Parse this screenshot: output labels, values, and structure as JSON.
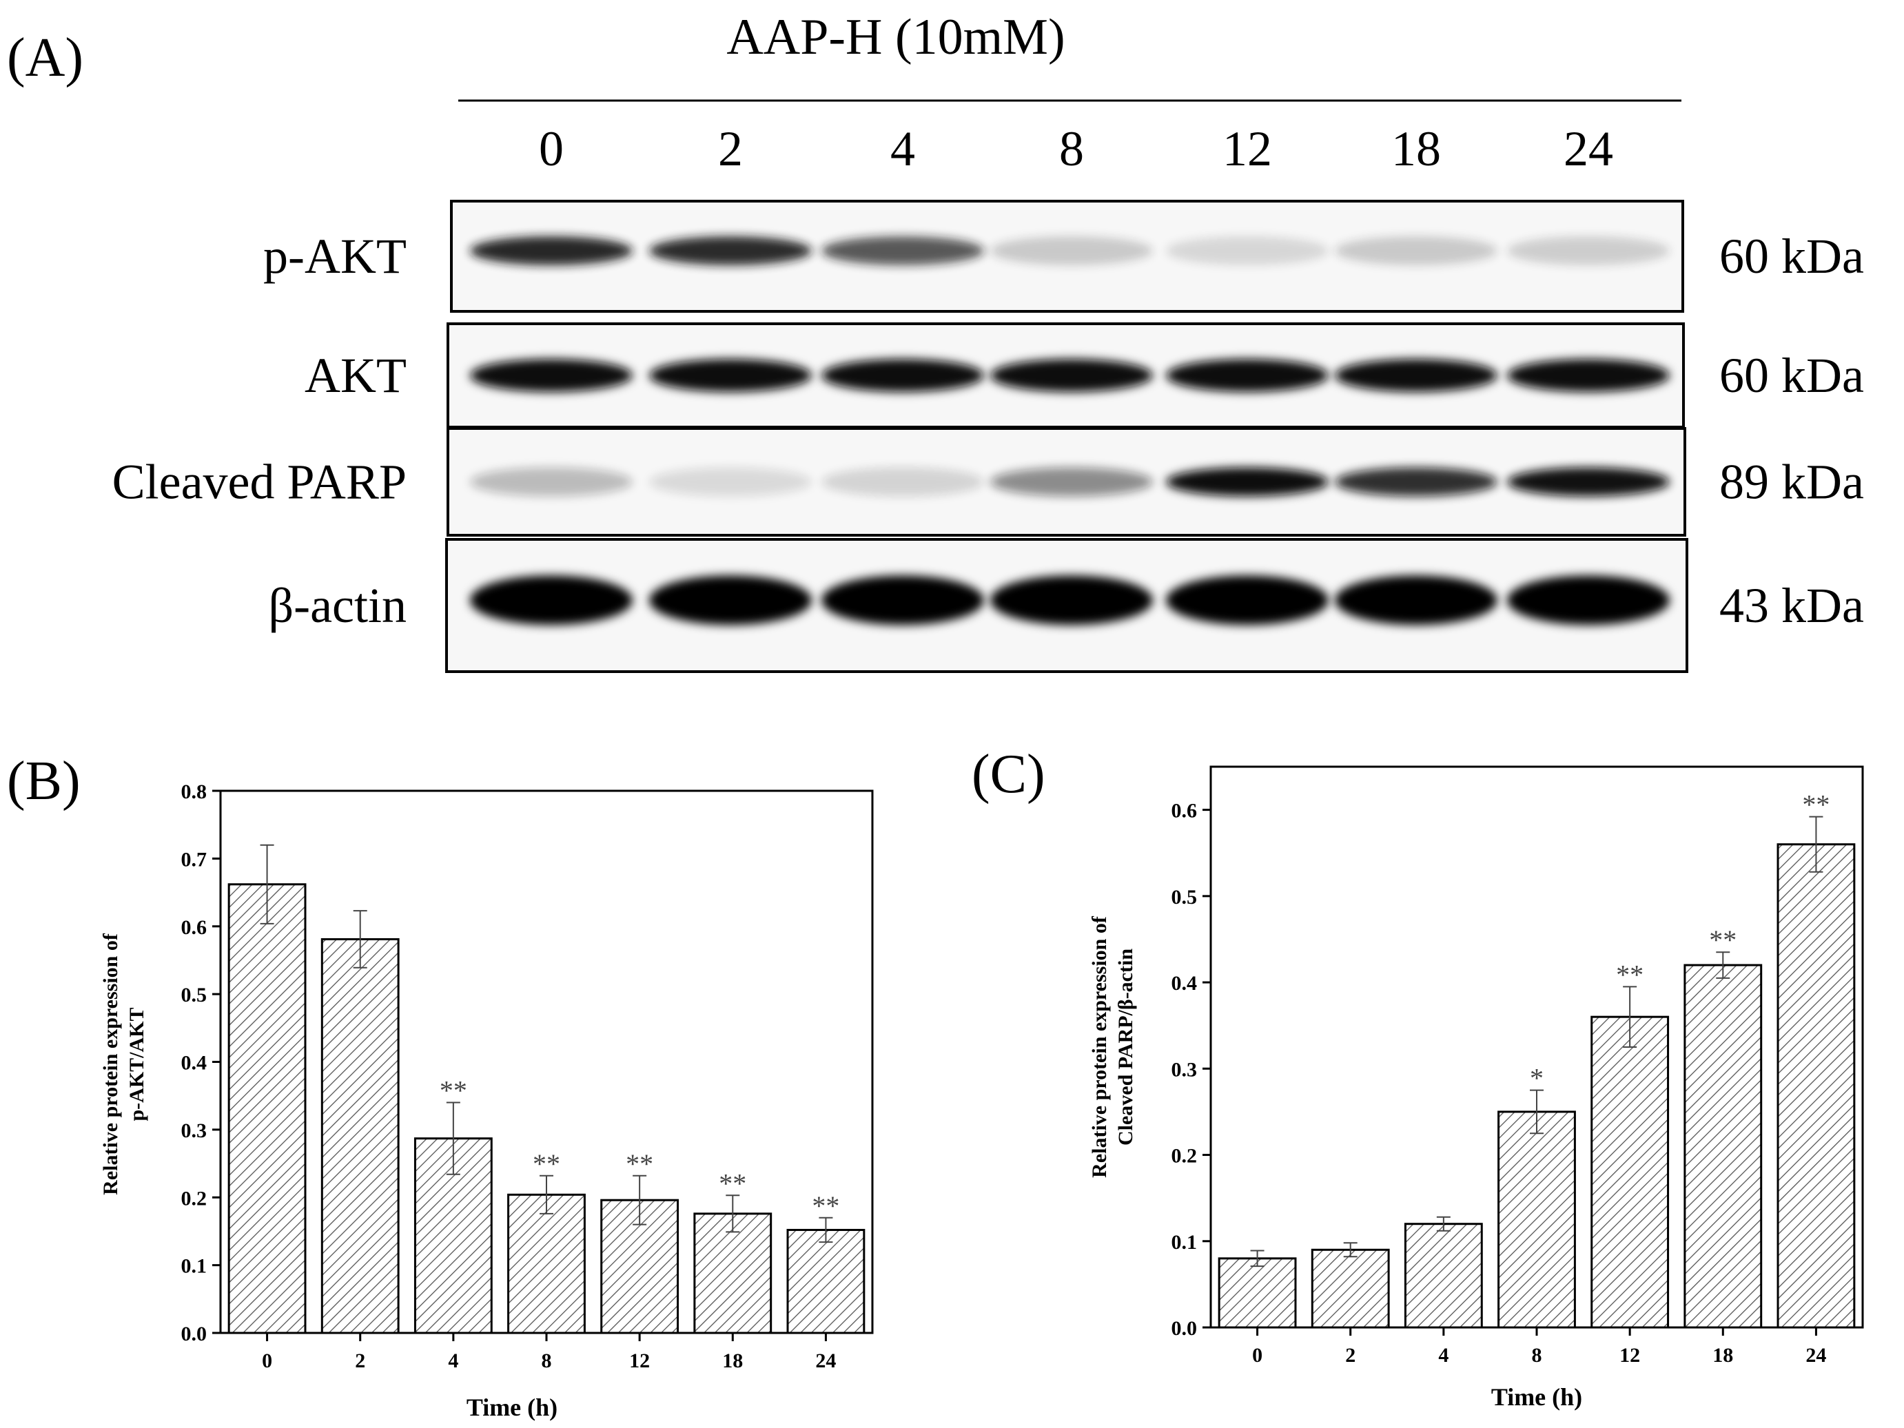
{
  "panel_a": {
    "label": "(A)",
    "treatment": "AAP-H (10mM)",
    "times": [
      "0",
      "2",
      "4",
      "8",
      "12",
      "18",
      "24"
    ],
    "blots": [
      {
        "protein": "p-AKT",
        "size": "60 kDa",
        "intensity": [
          0.92,
          0.9,
          0.7,
          0.2,
          0.14,
          0.2,
          0.18
        ],
        "dark": "#141414"
      },
      {
        "protein": "AKT",
        "size": "60 kDa",
        "intensity": [
          1,
          1,
          1,
          1,
          1,
          1,
          1
        ],
        "dark": "#0a0a0a"
      },
      {
        "protein": "Cleaved PARP",
        "size": "89 kDa",
        "intensity": [
          0.25,
          0.12,
          0.15,
          0.45,
          1,
          0.85,
          0.98
        ],
        "dark": "#0a0a0a"
      },
      {
        "protein": "β-actin",
        "size": "43 kDa",
        "intensity": [
          1,
          1,
          1,
          1,
          1,
          1,
          1
        ],
        "dark": "#000000"
      }
    ]
  },
  "chart_data": [
    {
      "panel": "(B)",
      "type": "bar",
      "categories": [
        "0",
        "2",
        "4",
        "8",
        "12",
        "18",
        "24"
      ],
      "values": [
        0.662,
        0.581,
        0.287,
        0.204,
        0.196,
        0.176,
        0.152
      ],
      "errors": [
        0.058,
        0.042,
        0.053,
        0.028,
        0.036,
        0.027,
        0.018
      ],
      "annotations": [
        "",
        "",
        "**",
        "**",
        "**",
        "**",
        "**"
      ],
      "xlabel": "Time (h)",
      "ylabel": [
        "Relative protein expression of",
        "p-AKT/AKT"
      ],
      "ylim": [
        0.0,
        0.8
      ],
      "yticks": [
        "0.0",
        "0.1",
        "0.2",
        "0.3",
        "0.4",
        "0.5",
        "0.6",
        "0.7",
        "0.8"
      ],
      "fill": "hatched"
    },
    {
      "panel": "(C)",
      "type": "bar",
      "categories": [
        "0",
        "2",
        "4",
        "8",
        "12",
        "18",
        "24"
      ],
      "values": [
        0.08,
        0.09,
        0.12,
        0.25,
        0.36,
        0.42,
        0.56
      ],
      "errors": [
        0.009,
        0.008,
        0.008,
        0.025,
        0.035,
        0.015,
        0.032
      ],
      "annotations": [
        "",
        "",
        "",
        "*",
        "**",
        "**",
        "**"
      ],
      "xlabel": "Time (h)",
      "ylabel": [
        "Relative protein expression of",
        "Cleaved PARP/β-actin"
      ],
      "ylim": [
        0.0,
        0.65
      ],
      "yticks": [
        "0.0",
        "0.1",
        "0.2",
        "0.3",
        "0.4",
        "0.5",
        "0.6"
      ],
      "fill": "hatched"
    }
  ]
}
